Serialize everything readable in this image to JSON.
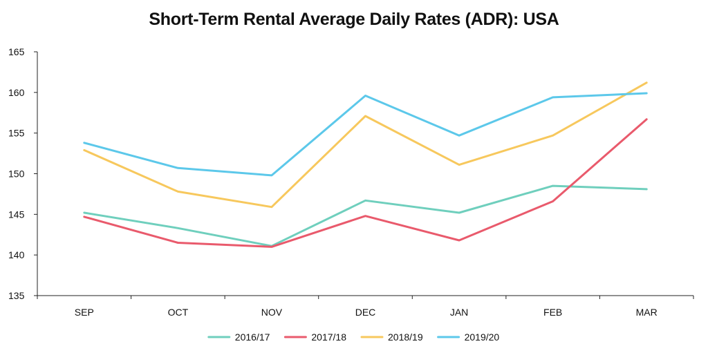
{
  "chart_data": {
    "type": "line",
    "title": "Short-Term Rental Average Daily Rates (ADR): USA",
    "xlabel": "",
    "ylabel": "",
    "categories": [
      "SEP",
      "OCT",
      "NOV",
      "DEC",
      "JAN",
      "FEB",
      "MAR"
    ],
    "ylim": [
      135,
      165
    ],
    "yticks": [
      135,
      140,
      145,
      150,
      155,
      160,
      165
    ],
    "grid": false,
    "legend_position": "bottom",
    "series": [
      {
        "name": "2016/17",
        "color": "#6fcfbd",
        "values": [
          145.2,
          143.3,
          141.1,
          146.7,
          145.2,
          148.5,
          148.1
        ]
      },
      {
        "name": "2017/18",
        "color": "#e95a6c",
        "values": [
          144.7,
          141.5,
          141.0,
          144.8,
          141.8,
          146.6,
          156.7
        ]
      },
      {
        "name": "2018/19",
        "color": "#f7c85d",
        "values": [
          152.9,
          147.8,
          145.9,
          157.1,
          151.1,
          154.7,
          161.2
        ]
      },
      {
        "name": "2019/20",
        "color": "#5cc8ea",
        "values": [
          153.8,
          150.7,
          149.8,
          159.6,
          154.7,
          159.4,
          159.9
        ]
      }
    ]
  }
}
